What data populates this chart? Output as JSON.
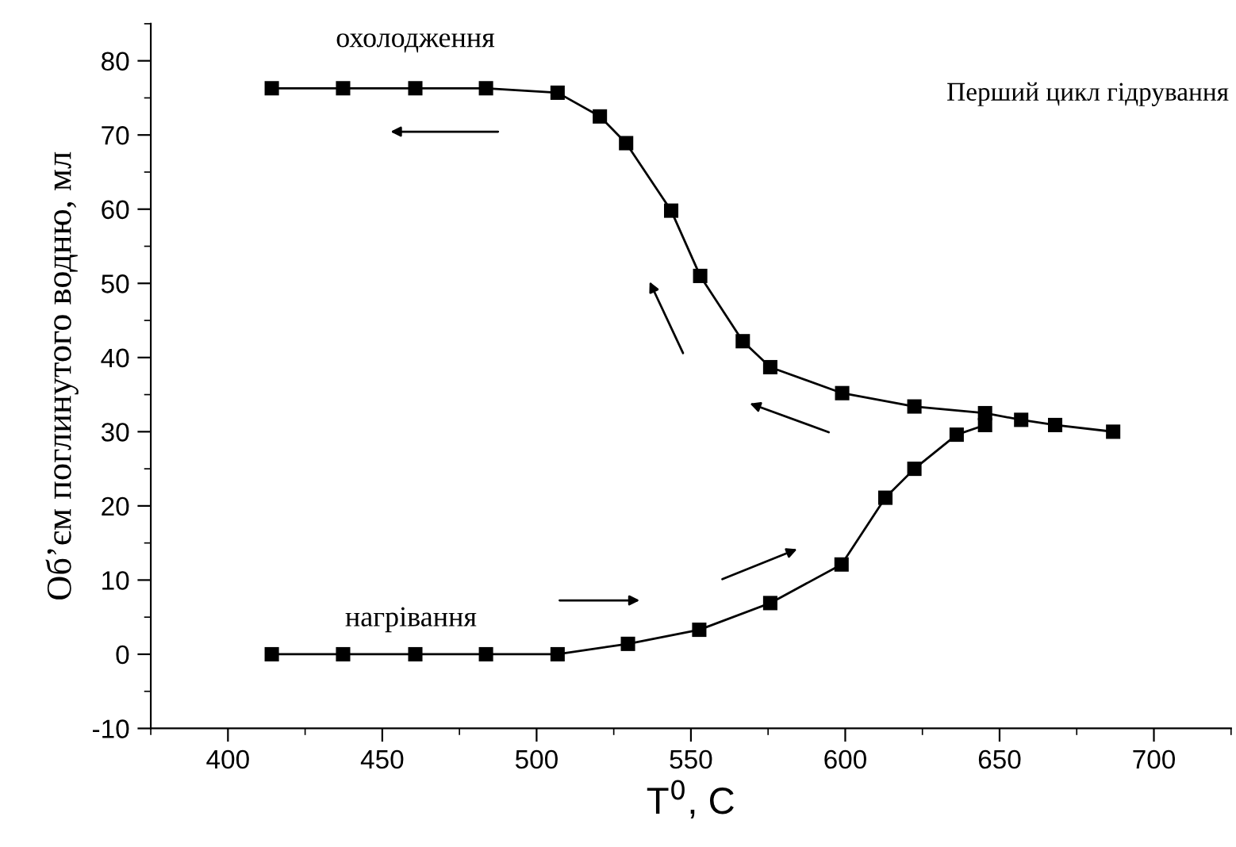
{
  "chart_data": {
    "type": "line",
    "xlabel": "T$^{0}$, C",
    "ylabel": "Об’єм поглинутого водню, мл",
    "annotations": [
      "Перший цикл гідрування"
    ],
    "series": [
      {
        "name": "охолодження",
        "color": "#000000",
        "x": [
          414.2,
          437.3,
          460.7,
          483.6,
          506.8,
          520.5,
          529,
          543.6,
          553,
          566.8,
          575.7,
          599,
          622.4,
          645.3,
          657,
          668,
          686.8
        ],
        "values": [
          76.3,
          76.3,
          76.3,
          76.3,
          75.7,
          72.5,
          68.9,
          59.8,
          51.0,
          42.2,
          38.7,
          35.2,
          33.4,
          32.5,
          31.6,
          30.9,
          30.0
        ]
      },
      {
        "name": "нагрівання",
        "color": "#000000",
        "x": [
          414.2,
          437.3,
          460.7,
          483.6,
          506.8,
          529.6,
          552.7,
          575.7,
          598.8,
          613,
          622.4,
          636.1,
          645.3
        ],
        "values": [
          0,
          0,
          0,
          0,
          0,
          1.4,
          3.3,
          6.9,
          12.1,
          21.1,
          25.0,
          29.6,
          30.9
        ]
      }
    ],
    "xlim": [
      375,
      725
    ],
    "xticks": [
      400,
      450,
      500,
      550,
      600,
      650,
      700
    ],
    "ylim": [
      -10,
      85
    ],
    "yticks": [
      -10,
      0,
      10,
      20,
      30,
      40,
      50,
      60,
      70,
      80
    ],
    "marker": "square",
    "line_style": "solid",
    "grid": false,
    "legend": false
  }
}
